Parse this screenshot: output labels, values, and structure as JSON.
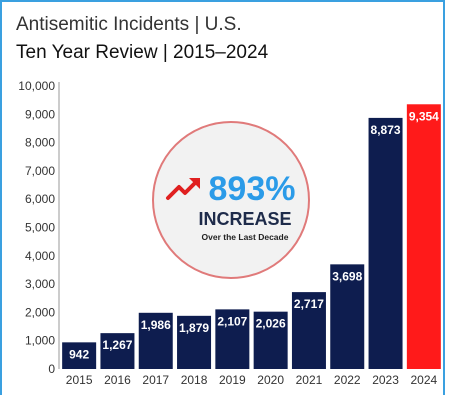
{
  "chart_data": {
    "type": "bar",
    "title": "Antisemitic Incidents | U.S.",
    "subtitle": "Ten Year Review | 2015–2024",
    "categories": [
      "2015",
      "2016",
      "2017",
      "2018",
      "2019",
      "2020",
      "2021",
      "2022",
      "2023",
      "2024"
    ],
    "values": [
      942,
      1267,
      1986,
      1879,
      2107,
      2026,
      2717,
      3698,
      8873,
      9354
    ],
    "value_labels": [
      "942",
      "1,267",
      "1,986",
      "1,879",
      "2,107",
      "2,026",
      "2,717",
      "3,698",
      "8,873",
      "9,354"
    ],
    "ylim": [
      0,
      10000
    ],
    "yticks": [
      0,
      1000,
      2000,
      3000,
      4000,
      5000,
      6000,
      7000,
      8000,
      9000,
      10000
    ],
    "ytick_labels": [
      "0",
      "1,000",
      "2,000",
      "3,000",
      "4,000",
      "5,000",
      "6,000",
      "7,000",
      "8,000",
      "9,000",
      "10,000"
    ],
    "bar_color": "#0e1d4f",
    "highlight_color": "#ff1a1a",
    "highlight_index": 9,
    "grid": false,
    "annotation": {
      "percent": "893%",
      "headline": "INCREASE",
      "subtext": "Over the Last Decade",
      "circle_fill": "#f2f2f2",
      "circle_stroke": "#e07a7a",
      "percent_color": "#2b9be8",
      "arrow_color": "#e02020"
    }
  }
}
